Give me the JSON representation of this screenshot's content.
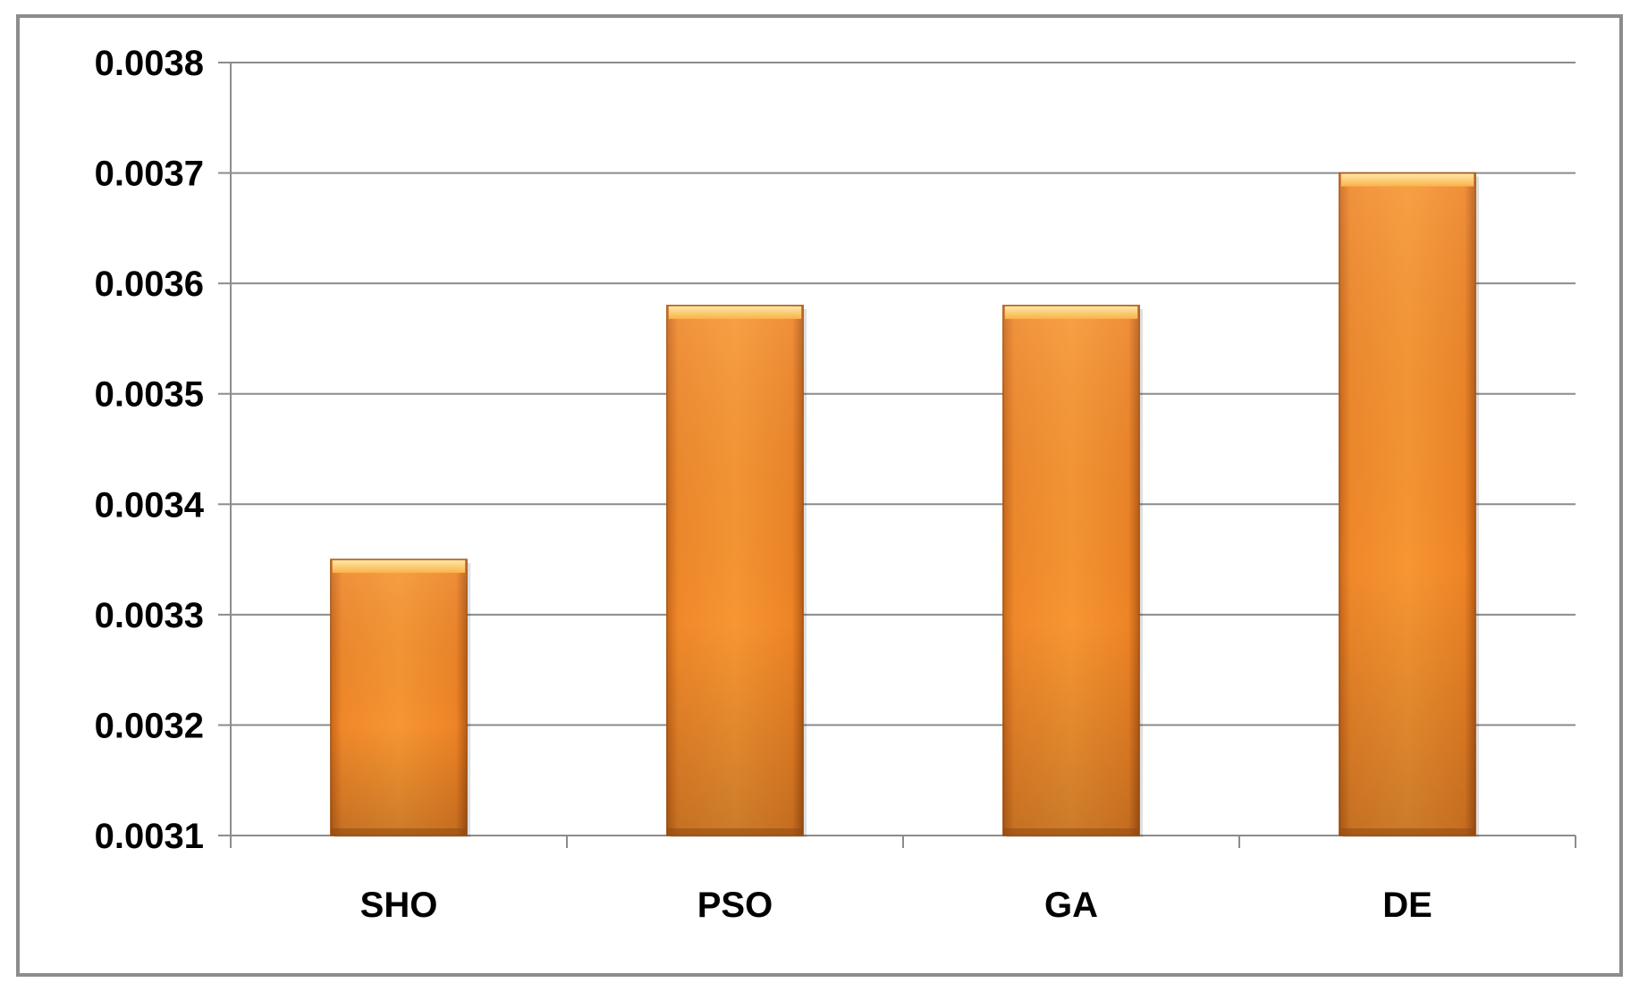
{
  "chart_data": {
    "type": "bar",
    "categories": [
      "SHO",
      "PSO",
      "GA",
      "DE"
    ],
    "values": [
      0.00335,
      0.00358,
      0.00358,
      0.0037
    ],
    "ylim": [
      0.0031,
      0.0038
    ],
    "yticks": [
      "0.0031",
      "0.0032",
      "0.0033",
      "0.0034",
      "0.0035",
      "0.0036",
      "0.0037",
      "0.0038"
    ],
    "title": "",
    "xlabel": "",
    "ylabel": "",
    "grid": "horizontal",
    "legend": "none",
    "colors": {
      "bar_light": "#fbab4a",
      "bar_mid": "#f28a25",
      "bar_dark": "#cf6c17",
      "bar_edge": "#a85512",
      "gridline": "#8c8c8c",
      "axis": "#8c8c8c",
      "frame": "#8c8c8c"
    }
  }
}
